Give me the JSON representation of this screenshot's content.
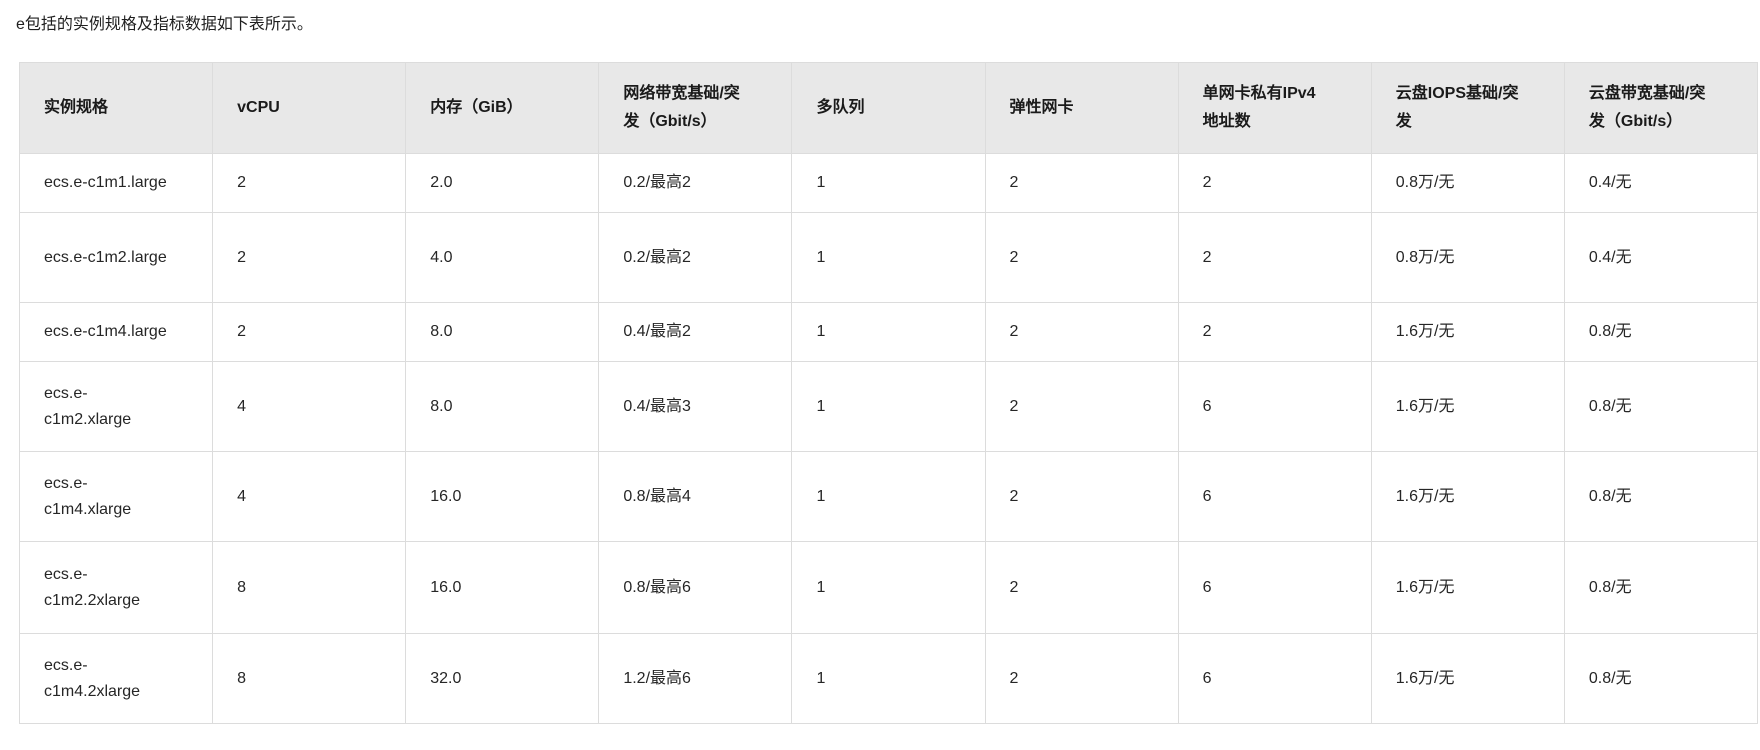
{
  "intro": "e包括的实例规格及指标数据如下表所示。",
  "table": {
    "headers": [
      "实例规格",
      "vCPU",
      "内存（GiB）",
      "网络带宽基础/突发（Gbit/s）",
      "多队列",
      "弹性网卡",
      "单网卡私有IPv4地址数",
      "云盘IOPS基础/突发",
      "云盘带宽基础/突发（Gbit/s）"
    ],
    "rows": [
      [
        "ecs.e-c1m1.large",
        "2",
        "2.0",
        "0.2/最高2",
        "1",
        "2",
        "2",
        "0.8万/无",
        "0.4/无"
      ],
      [
        "ecs.e-c1m2.large",
        "2",
        "4.0",
        "0.2/最高2",
        "1",
        "2",
        "2",
        "0.8万/无",
        "0.4/无"
      ],
      [
        "ecs.e-c1m4.large",
        "2",
        "8.0",
        "0.4/最高2",
        "1",
        "2",
        "2",
        "1.6万/无",
        "0.8/无"
      ],
      [
        "ecs.e-c1m2.xlarge",
        "4",
        "8.0",
        "0.4/最高3",
        "1",
        "2",
        "6",
        "1.6万/无",
        "0.8/无"
      ],
      [
        "ecs.e-c1m4.xlarge",
        "4",
        "16.0",
        "0.8/最高4",
        "1",
        "2",
        "6",
        "1.6万/无",
        "0.8/无"
      ],
      [
        "ecs.e-c1m2.2xlarge",
        "8",
        "16.0",
        "0.8/最高6",
        "1",
        "2",
        "6",
        "1.6万/无",
        "0.8/无"
      ],
      [
        "ecs.e-c1m4.2xlarge",
        "8",
        "32.0",
        "1.2/最高6",
        "1",
        "2",
        "6",
        "1.6万/无",
        "0.8/无"
      ]
    ]
  },
  "colors": {
    "header_bg": "#e8e8e8",
    "border": "#dcdcdc",
    "text": "#262626"
  }
}
